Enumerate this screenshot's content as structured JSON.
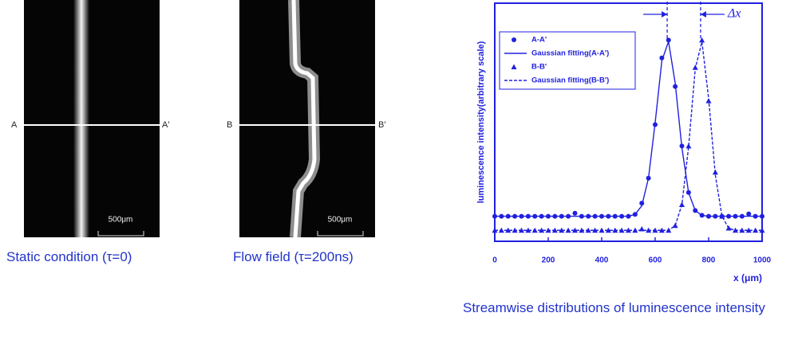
{
  "panels": [
    {
      "labels": [
        "A",
        "A'"
      ],
      "scale_bar": "500μm",
      "caption": "Static condition (τ=0)"
    },
    {
      "labels": [
        "B",
        "B'"
      ],
      "scale_bar": "500μm",
      "caption": "Flow field (τ=200ns)"
    }
  ],
  "chart_data": {
    "type": "line",
    "xlabel": "x (μm)",
    "ylabel": "luminescence intensity(arbitrary scale)",
    "caption": "Streamwise distributions of luminescence intensity",
    "xlim": [
      0,
      1000
    ],
    "xticks": [
      0,
      200,
      400,
      600,
      800,
      1000
    ],
    "ylim": [
      0,
      1
    ],
    "legend": "upper left",
    "color": "#2020e0",
    "annotation": {
      "label": "Δx",
      "x": [
        645,
        770
      ]
    },
    "x": [
      0,
      25,
      50,
      75,
      100,
      125,
      150,
      175,
      200,
      225,
      250,
      275,
      300,
      325,
      350,
      375,
      400,
      425,
      450,
      475,
      500,
      525,
      550,
      575,
      600,
      625,
      650,
      675,
      700,
      725,
      750,
      775,
      800,
      825,
      850,
      875,
      900,
      925,
      950,
      975,
      1000
    ],
    "series": [
      {
        "name": "A-A'",
        "marker": "circle",
        "values": [
          0.105,
          0.105,
          0.105,
          0.105,
          0.105,
          0.105,
          0.105,
          0.105,
          0.105,
          0.105,
          0.105,
          0.105,
          0.118,
          0.105,
          0.105,
          0.105,
          0.105,
          0.105,
          0.105,
          0.105,
          0.105,
          0.113,
          0.16,
          0.265,
          0.49,
          0.77,
          0.845,
          0.65,
          0.4,
          0.205,
          0.129,
          0.109,
          0.105,
          0.105,
          0.105,
          0.105,
          0.105,
          0.105,
          0.115,
          0.105,
          0.105
        ]
      },
      {
        "name": "Gaussian fitting(A-A')",
        "dash": "solid",
        "values": [
          0.105,
          0.105,
          0.105,
          0.105,
          0.105,
          0.105,
          0.105,
          0.105,
          0.105,
          0.105,
          0.105,
          0.105,
          0.105,
          0.105,
          0.105,
          0.105,
          0.105,
          0.105,
          0.105,
          0.105,
          0.105,
          0.113,
          0.149,
          0.265,
          0.498,
          0.758,
          0.839,
          0.664,
          0.393,
          0.205,
          0.129,
          0.109,
          0.105,
          0.105,
          0.105,
          0.105,
          0.105,
          0.105,
          0.105,
          0.105,
          0.105
        ]
      },
      {
        "name": "B-B'",
        "marker": "triangle",
        "values": [
          0.046,
          0.046,
          0.046,
          0.046,
          0.046,
          0.046,
          0.046,
          0.046,
          0.046,
          0.046,
          0.046,
          0.046,
          0.046,
          0.046,
          0.046,
          0.046,
          0.046,
          0.046,
          0.046,
          0.046,
          0.046,
          0.046,
          0.052,
          0.046,
          0.046,
          0.046,
          0.046,
          0.066,
          0.154,
          0.4,
          0.73,
          0.845,
          0.59,
          0.29,
          0.105,
          0.055,
          0.046,
          0.046,
          0.046,
          0.046,
          0.046
        ]
      },
      {
        "name": "Gaussian fitting(B-B')",
        "dash": "dashed",
        "values": [
          0.046,
          0.046,
          0.046,
          0.046,
          0.046,
          0.046,
          0.046,
          0.046,
          0.046,
          0.046,
          0.046,
          0.046,
          0.046,
          0.046,
          0.046,
          0.046,
          0.046,
          0.046,
          0.046,
          0.046,
          0.046,
          0.046,
          0.046,
          0.046,
          0.046,
          0.046,
          0.046,
          0.066,
          0.154,
          0.396,
          0.725,
          0.838,
          0.6,
          0.279,
          0.105,
          0.055,
          0.046,
          0.046,
          0.046,
          0.046,
          0.046
        ]
      }
    ]
  }
}
